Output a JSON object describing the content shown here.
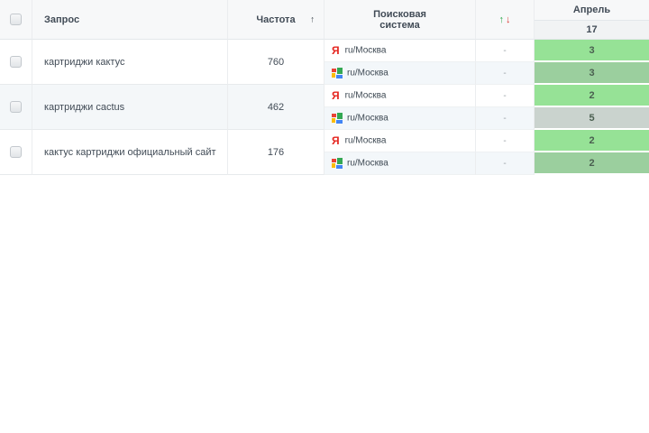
{
  "table": {
    "headers": {
      "query": "Запрос",
      "frequency": "Частота",
      "frequency_sort_icon": "↑",
      "search_engine": "Поисковая\nсистема",
      "change_up_icon": "↑",
      "change_down_icon": "↓",
      "month": "Апрель",
      "day": "17"
    },
    "colors": {
      "position_green": "#96e296",
      "position_green_muted": "#9bcf9e",
      "position_gray": "#cad3ce",
      "yandex_red": "#e52620",
      "arrow_green": "#2fa84f",
      "arrow_red": "#d93a35"
    },
    "rows": [
      {
        "query": "картриджи кактус",
        "frequency": "760",
        "engines": [
          {
            "engine": "yandex",
            "label": "ru/Москва",
            "change": "-",
            "position": "3",
            "pos_color": "#96e296"
          },
          {
            "engine": "google",
            "label": "ru/Москва",
            "change": "-",
            "position": "3",
            "pos_color": "#9bcf9e"
          }
        ]
      },
      {
        "query": "картриджи cactus",
        "frequency": "462",
        "engines": [
          {
            "engine": "yandex",
            "label": "ru/Москва",
            "change": "-",
            "position": "2",
            "pos_color": "#96e296"
          },
          {
            "engine": "google",
            "label": "ru/Москва",
            "change": "-",
            "position": "5",
            "pos_color": "#cad3ce"
          }
        ]
      },
      {
        "query": "кактус картриджи официальный сайт",
        "frequency": "176",
        "engines": [
          {
            "engine": "yandex",
            "label": "ru/Москва",
            "change": "-",
            "position": "2",
            "pos_color": "#96e296"
          },
          {
            "engine": "google",
            "label": "ru/Москва",
            "change": "-",
            "position": "2",
            "pos_color": "#9bcf9e"
          }
        ]
      }
    ]
  }
}
